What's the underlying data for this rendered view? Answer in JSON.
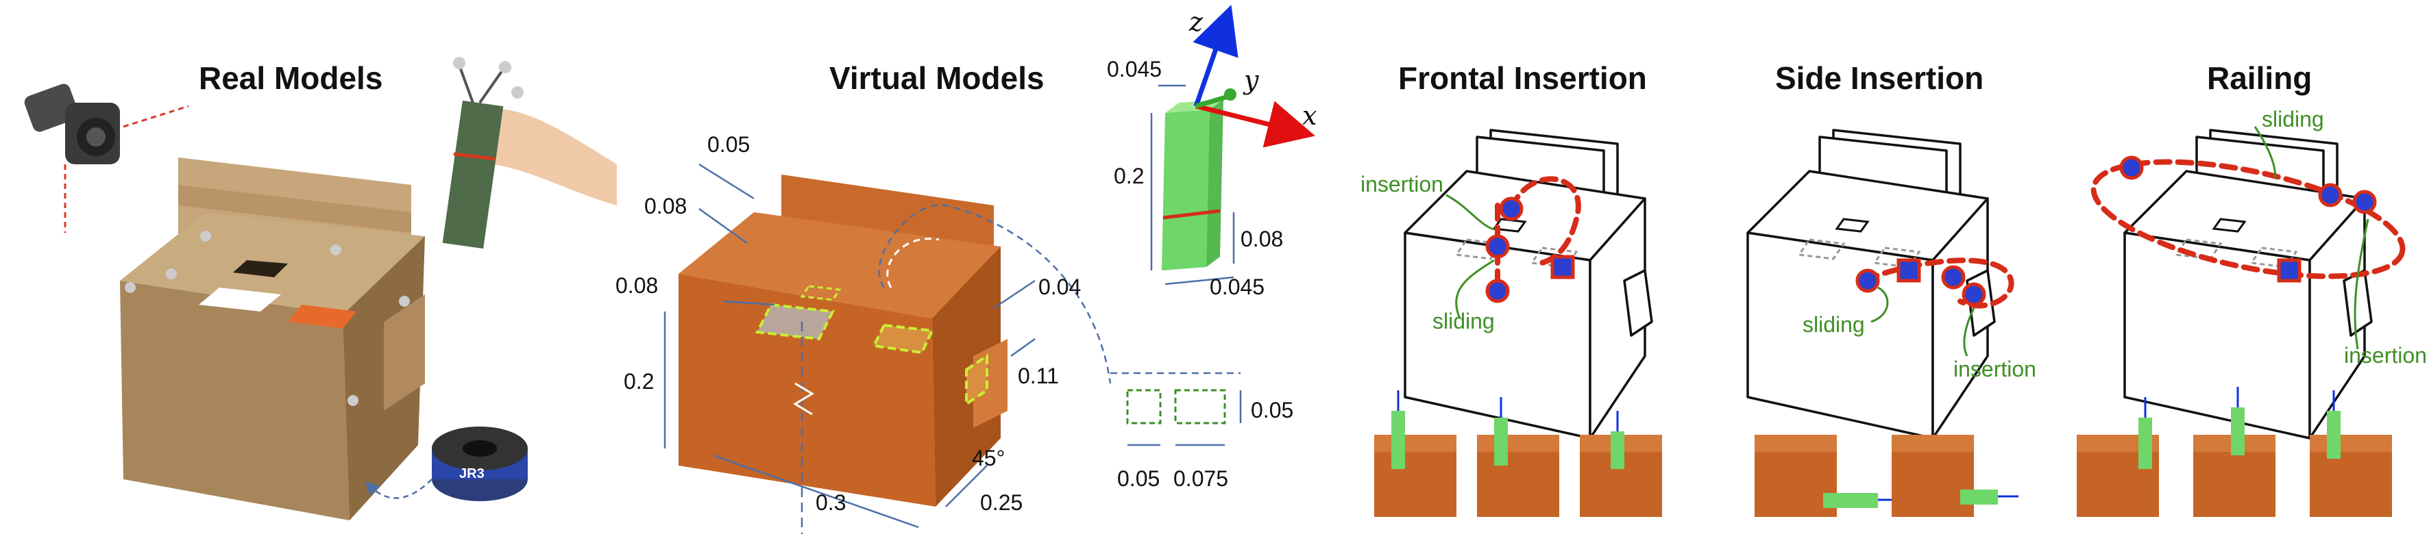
{
  "titles": {
    "real": "Real Models",
    "virtual": "Virtual Models",
    "frontal": "Frontal Insertion",
    "side": "Side Insertion",
    "railing": "Railing"
  },
  "sensor_label": "JR3",
  "dimensions": {
    "d005_top": "0.05",
    "d008_a": "0.08",
    "d008_b": "0.08",
    "d02_box": "0.2",
    "d03": "0.3",
    "d025": "0.25",
    "d004": "0.04",
    "d011": "0.11",
    "angle": "45°",
    "peg_0045_top": "0.045",
    "peg_02": "0.2",
    "peg_008": "0.08",
    "peg_0045_bot": "0.045",
    "hole_005_h": "0.05",
    "hole_005_w": "0.05",
    "hole_0075": "0.075"
  },
  "axes": {
    "x": "x",
    "y": "y",
    "z": "z"
  },
  "labels": {
    "frontal_insertion": "insertion",
    "frontal_sliding": "sliding",
    "side_sliding": "sliding",
    "side_insertion": "insertion",
    "railing_sliding": "sliding",
    "railing_insertion": "insertion"
  },
  "colors": {
    "box_orange": "#c96a2a",
    "peg_green": "#6fd66a",
    "path_red": "#d62c18",
    "marker_blue": "#2b3fd0",
    "label_green": "#3f8f25",
    "dim_blue": "#4d6fa8",
    "cardboard": "#a8865c"
  },
  "icons": [
    "camera-icon",
    "sensor-icon",
    "hand-icon",
    "axis-triad-icon"
  ]
}
